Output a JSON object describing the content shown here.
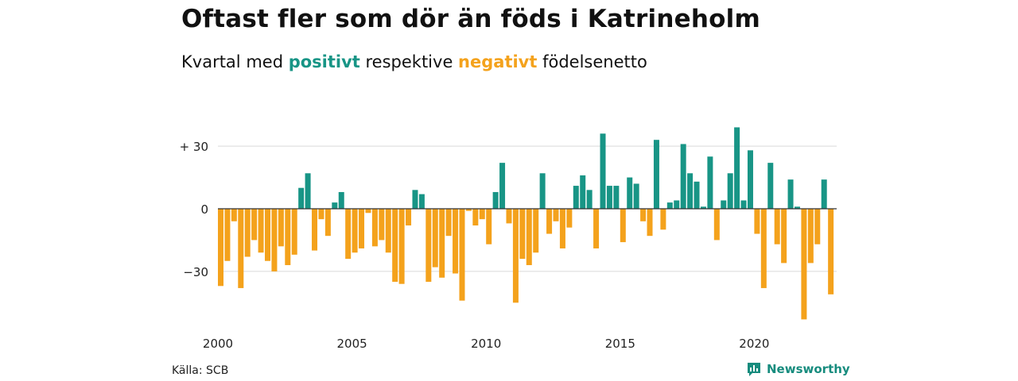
{
  "header": {
    "title": "Oftast fler som dör än föds i Katrineholm",
    "subtitle_start": "Kvartal med ",
    "subtitle_positive": "positivt",
    "subtitle_middle": " respektive ",
    "subtitle_negative": "negativt",
    "subtitle_end": " födelsenetto"
  },
  "footer": {
    "source": "Källa: SCB",
    "brand": "Newsworthy"
  },
  "colors": {
    "positive": "#189586",
    "negative": "#f4a21c",
    "grid": "#d9d9d9",
    "zero_line": "#333333",
    "brand": "#178c7e"
  },
  "chart_data": {
    "type": "bar",
    "x_unit": "quarter",
    "x_start": "2000 Q1",
    "ylim": [
      -53,
      40
    ],
    "yticks": [
      {
        "value": 30,
        "label": "+ 30"
      },
      {
        "value": 0,
        "label": "0"
      },
      {
        "value": -30,
        "label": "−30"
      }
    ],
    "xticks": [
      {
        "label": "2000"
      },
      {
        "label": "2005"
      },
      {
        "label": "2010"
      },
      {
        "label": "2015"
      },
      {
        "label": "2020"
      }
    ],
    "grid": true,
    "values": [
      -37,
      -25,
      -6,
      -38,
      -23,
      -15,
      -21,
      -25,
      -30,
      -18,
      -27,
      -22,
      10,
      17,
      -20,
      -5,
      -13,
      3,
      8,
      -24,
      -21,
      -19,
      -2,
      -18,
      -15,
      -21,
      -35,
      -36,
      -8,
      9,
      7,
      -35,
      -28,
      -33,
      -13,
      -31,
      -44,
      -1,
      -8,
      -5,
      -17,
      8,
      22,
      -7,
      -45,
      -24,
      -27,
      -21,
      17,
      -12,
      -6,
      -19,
      -9,
      11,
      16,
      9,
      -19,
      36,
      11,
      11,
      -16,
      15,
      12,
      -6,
      -13,
      33,
      -10,
      3,
      4,
      31,
      17,
      13,
      1,
      25,
      -15,
      4,
      17,
      39,
      4,
      28,
      -12,
      -38,
      22,
      -17,
      -26,
      14,
      1,
      -53,
      -26,
      -17,
      14,
      -41
    ]
  }
}
